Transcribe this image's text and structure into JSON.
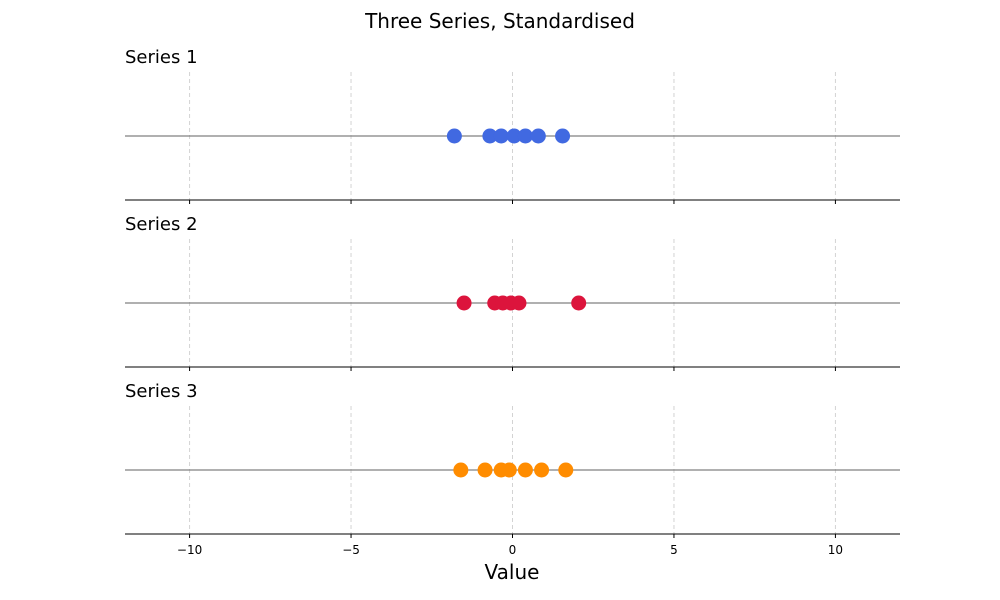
{
  "chart_data": {
    "type": "scatter",
    "title": "Three Series, Standardised",
    "xlabel": "Value",
    "xlim": [
      -12,
      12
    ],
    "xticks": [
      -10,
      -5,
      0,
      5,
      10
    ],
    "xtick_labels": [
      "−10",
      "−5",
      "0",
      "5",
      "10"
    ],
    "grid": "vertical dashed",
    "series": [
      {
        "name": "Series 1",
        "color": "#4169e1",
        "x": [
          -1.8,
          -0.7,
          -0.35,
          0.05,
          0.4,
          0.8,
          1.55
        ],
        "y": [
          0,
          0,
          0,
          0,
          0,
          0,
          0
        ]
      },
      {
        "name": "Series 2",
        "color": "#dc143c",
        "x": [
          -1.5,
          -0.55,
          -0.3,
          -0.05,
          0.2,
          2.05
        ],
        "y": [
          0,
          0,
          0,
          0,
          0,
          0
        ]
      },
      {
        "name": "Series 3",
        "color": "#ff8c00",
        "x": [
          -1.6,
          -0.85,
          -0.35,
          -0.1,
          0.4,
          0.9,
          1.65
        ],
        "y": [
          0,
          0,
          0,
          0,
          0,
          0,
          0
        ]
      }
    ]
  }
}
